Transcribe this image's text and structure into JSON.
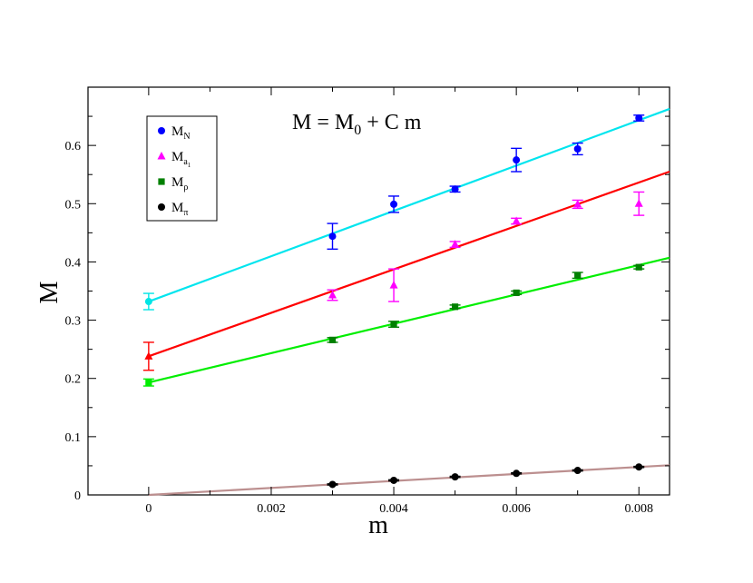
{
  "chart_data": {
    "type": "scatter",
    "title": "",
    "annotation": "M = M",
    "annotation_sub": "0",
    "annotation_tail": " + C m",
    "xlabel": "m",
    "ylabel": "M",
    "xlim": [
      -0.00099,
      0.0085
    ],
    "ylim": [
      0,
      0.7
    ],
    "x_ticks": [
      0,
      0.002,
      0.004,
      0.006,
      0.008
    ],
    "x_tick_labels": [
      "0",
      "0.002",
      "0.004",
      "0.006",
      "0.008"
    ],
    "y_ticks": [
      0,
      0.1,
      0.2,
      0.3,
      0.4,
      0.5,
      0.6
    ],
    "y_tick_labels": [
      "0",
      "0.1",
      "0.2",
      "0.3",
      "0.4",
      "0.5",
      "0.6"
    ],
    "grid": false,
    "legend_position": "top-left",
    "series": [
      {
        "name": "M_N",
        "label_main": "M",
        "label_sub": "N",
        "marker": "circle",
        "color": "#0000ff",
        "x": [
          0.003,
          0.004,
          0.005,
          0.006,
          0.007,
          0.008
        ],
        "y": [
          0.444,
          0.499,
          0.525,
          0.575,
          0.594,
          0.647
        ],
        "err": [
          0.022,
          0.014,
          0.005,
          0.02,
          0.01,
          0.005
        ],
        "extrapolated": {
          "x": 0,
          "y": 0.332,
          "err": 0.014,
          "color": "#00e5e5"
        },
        "fit": {
          "intercept": 0.332,
          "slope": 38.9,
          "color": "#00e5ee"
        }
      },
      {
        "name": "M_a1",
        "label_main": "M",
        "label_sub": "a",
        "label_subsub": "1",
        "marker": "triangle",
        "color": "#ff00ff",
        "x": [
          0.003,
          0.004,
          0.005,
          0.006,
          0.007,
          0.008
        ],
        "y": [
          0.343,
          0.36,
          0.43,
          0.47,
          0.499,
          0.5
        ],
        "err": [
          0.009,
          0.028,
          0.005,
          0.005,
          0.007,
          0.02
        ],
        "extrapolated": {
          "x": 0,
          "y": 0.238,
          "err": 0.024,
          "color": "#ff0000"
        },
        "fit": {
          "intercept": 0.238,
          "slope": 37.3,
          "color": "#ff0000"
        }
      },
      {
        "name": "M_rho",
        "label_main": "M",
        "label_sub": "ρ",
        "marker": "square",
        "color": "#008000",
        "x": [
          0.003,
          0.004,
          0.005,
          0.006,
          0.007,
          0.008
        ],
        "y": [
          0.266,
          0.293,
          0.323,
          0.347,
          0.377,
          0.391
        ],
        "err": [
          0.004,
          0.005,
          0.003,
          0.003,
          0.005,
          0.003
        ],
        "extrapolated": {
          "x": 0,
          "y": 0.193,
          "err": 0.006,
          "color": "#00ee00"
        },
        "fit": {
          "intercept": 0.193,
          "slope": 25.2,
          "color": "#00ee00"
        }
      },
      {
        "name": "M_pi",
        "label_main": "M",
        "label_sub": "π",
        "marker": "circle",
        "color": "#000000",
        "x": [
          0.003,
          0.004,
          0.005,
          0.006,
          0.007,
          0.008
        ],
        "y": [
          0.018,
          0.025,
          0.031,
          0.037,
          0.042,
          0.048
        ],
        "err": [
          0.001,
          0.001,
          0.001,
          0.001,
          0.001,
          0.001
        ],
        "fit": {
          "intercept": 0.0,
          "slope": 6.0,
          "color": "#bc8f8f"
        }
      }
    ]
  }
}
